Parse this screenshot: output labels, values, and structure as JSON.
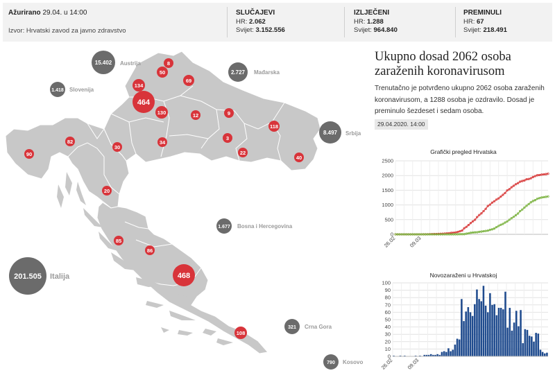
{
  "header": {
    "updated_label": "Ažurirano",
    "updated_value": "29.04. u 14:00",
    "source": "Izvor: Hrvatski zavod za javno zdravstvo",
    "stats": [
      {
        "title": "SLUČAJEVI",
        "hr_label": "HR:",
        "hr": "2.062",
        "world_label": "Svijet:",
        "world": "3.152.556"
      },
      {
        "title": "IZLJEČENI",
        "hr_label": "HR:",
        "hr": "1.288",
        "world_label": "Svijet:",
        "world": "964.840"
      },
      {
        "title": "PREMINULI",
        "hr_label": "HR:",
        "hr": "67",
        "world_label": "Svijet:",
        "world": "218.491"
      }
    ]
  },
  "map": {
    "neighbors": [
      {
        "value": "15.402",
        "label": "Austrija"
      },
      {
        "value": "2.727",
        "label": "Mađarska"
      },
      {
        "value": "1.418",
        "label": "Slovenija"
      },
      {
        "value": "8.497",
        "label": "Srbija"
      },
      {
        "value": "1.677",
        "label": "Bosna i Hercegovina"
      },
      {
        "value": "201.505",
        "label": "Italija"
      },
      {
        "value": "321",
        "label": "Crna Gora"
      },
      {
        "value": "790",
        "label": "Kosovo"
      }
    ],
    "counties": [
      "8",
      "50",
      "69",
      "134",
      "464",
      "130",
      "12",
      "9",
      "118",
      "3",
      "22",
      "40",
      "82",
      "90",
      "30",
      "34",
      "20",
      "85",
      "86",
      "468",
      "108"
    ],
    "colors": {
      "land": "#c8c8c8",
      "border": "#ffffff",
      "county_circle": "#d8343a",
      "neighbor_circle": "#6b6b6b"
    }
  },
  "article": {
    "headline": "Ukupno dosad 2062 osoba zaraženih koronavirusom",
    "summary": "Trenutačno je potvrđeno ukupno 2062 osoba zaraženih koronavirusom, a 1288 osoba je ozdravilo. Dosad je preminulo šezdeset i sedam osoba.",
    "timestamp": "29.04.2020. 14:00"
  },
  "chart_data": [
    {
      "type": "line",
      "title": "Grafički pregled Hrvatska",
      "ylim": [
        0,
        2500
      ],
      "yticks": [
        0,
        500,
        1000,
        1500,
        2000,
        2500
      ],
      "xtick_labels": [
        "26.02",
        "09.03"
      ],
      "series": [
        {
          "color": "#d83a3a",
          "values": [
            0,
            0,
            0,
            0,
            0,
            0,
            0,
            0,
            0,
            0,
            0,
            0,
            0,
            1,
            1,
            3,
            5,
            7,
            10,
            12,
            14,
            17,
            19,
            25,
            32,
            38,
            49,
            56,
            65,
            81,
            105,
            128,
            206,
            254,
            315,
            382,
            442,
            495,
            586,
            657,
            713,
            790,
            867,
            963,
            1011,
            1079,
            1126,
            1182,
            1222,
            1282,
            1343,
            1407,
            1495,
            1534,
            1600,
            1650,
            1704,
            1741,
            1791,
            1814,
            1832,
            1871,
            1881,
            1908,
            1950,
            1981,
            2009,
            2016,
            2030,
            2039,
            2047,
            2062
          ]
        },
        {
          "color": "#7cb342",
          "values": [
            0,
            0,
            0,
            0,
            0,
            0,
            0,
            0,
            0,
            0,
            0,
            0,
            0,
            0,
            0,
            0,
            0,
            0,
            0,
            0,
            0,
            0,
            0,
            0,
            0,
            0,
            0,
            1,
            1,
            2,
            5,
            5,
            5,
            22,
            36,
            52,
            60,
            67,
            71,
            86,
            93,
            105,
            115,
            125,
            152,
            170,
            196,
            245,
            286,
            325,
            353,
            400,
            440,
            495,
            547,
            596,
            650,
            708,
            789,
            843,
            910,
            971,
            1028,
            1089,
            1133,
            1163,
            1208,
            1231,
            1252,
            1265,
            1275,
            1288
          ]
        }
      ]
    },
    {
      "type": "bar",
      "title": "Novozaraženi u Hrvatskoj",
      "ylim": [
        0,
        100
      ],
      "yticks": [
        0,
        10,
        20,
        30,
        40,
        50,
        60,
        70,
        80,
        90,
        100
      ],
      "xtick_labels": [
        "26.02",
        "09.03"
      ],
      "color": "#1f4b8e",
      "values": [
        1,
        0,
        0,
        1,
        0,
        1,
        0,
        0,
        0,
        0,
        1,
        0,
        1,
        0,
        2,
        2,
        2,
        3,
        2,
        2,
        3,
        2,
        6,
        7,
        6,
        11,
        7,
        9,
        16,
        24,
        23,
        78,
        48,
        61,
        67,
        60,
        55,
        71,
        91,
        78,
        75,
        96,
        69,
        60,
        86,
        70,
        71,
        56,
        66,
        66,
        64,
        88,
        39,
        66,
        35,
        46,
        62,
        41,
        63,
        18,
        37,
        36,
        28,
        27,
        20,
        32,
        31,
        9,
        6,
        4,
        5
      ]
    }
  ]
}
